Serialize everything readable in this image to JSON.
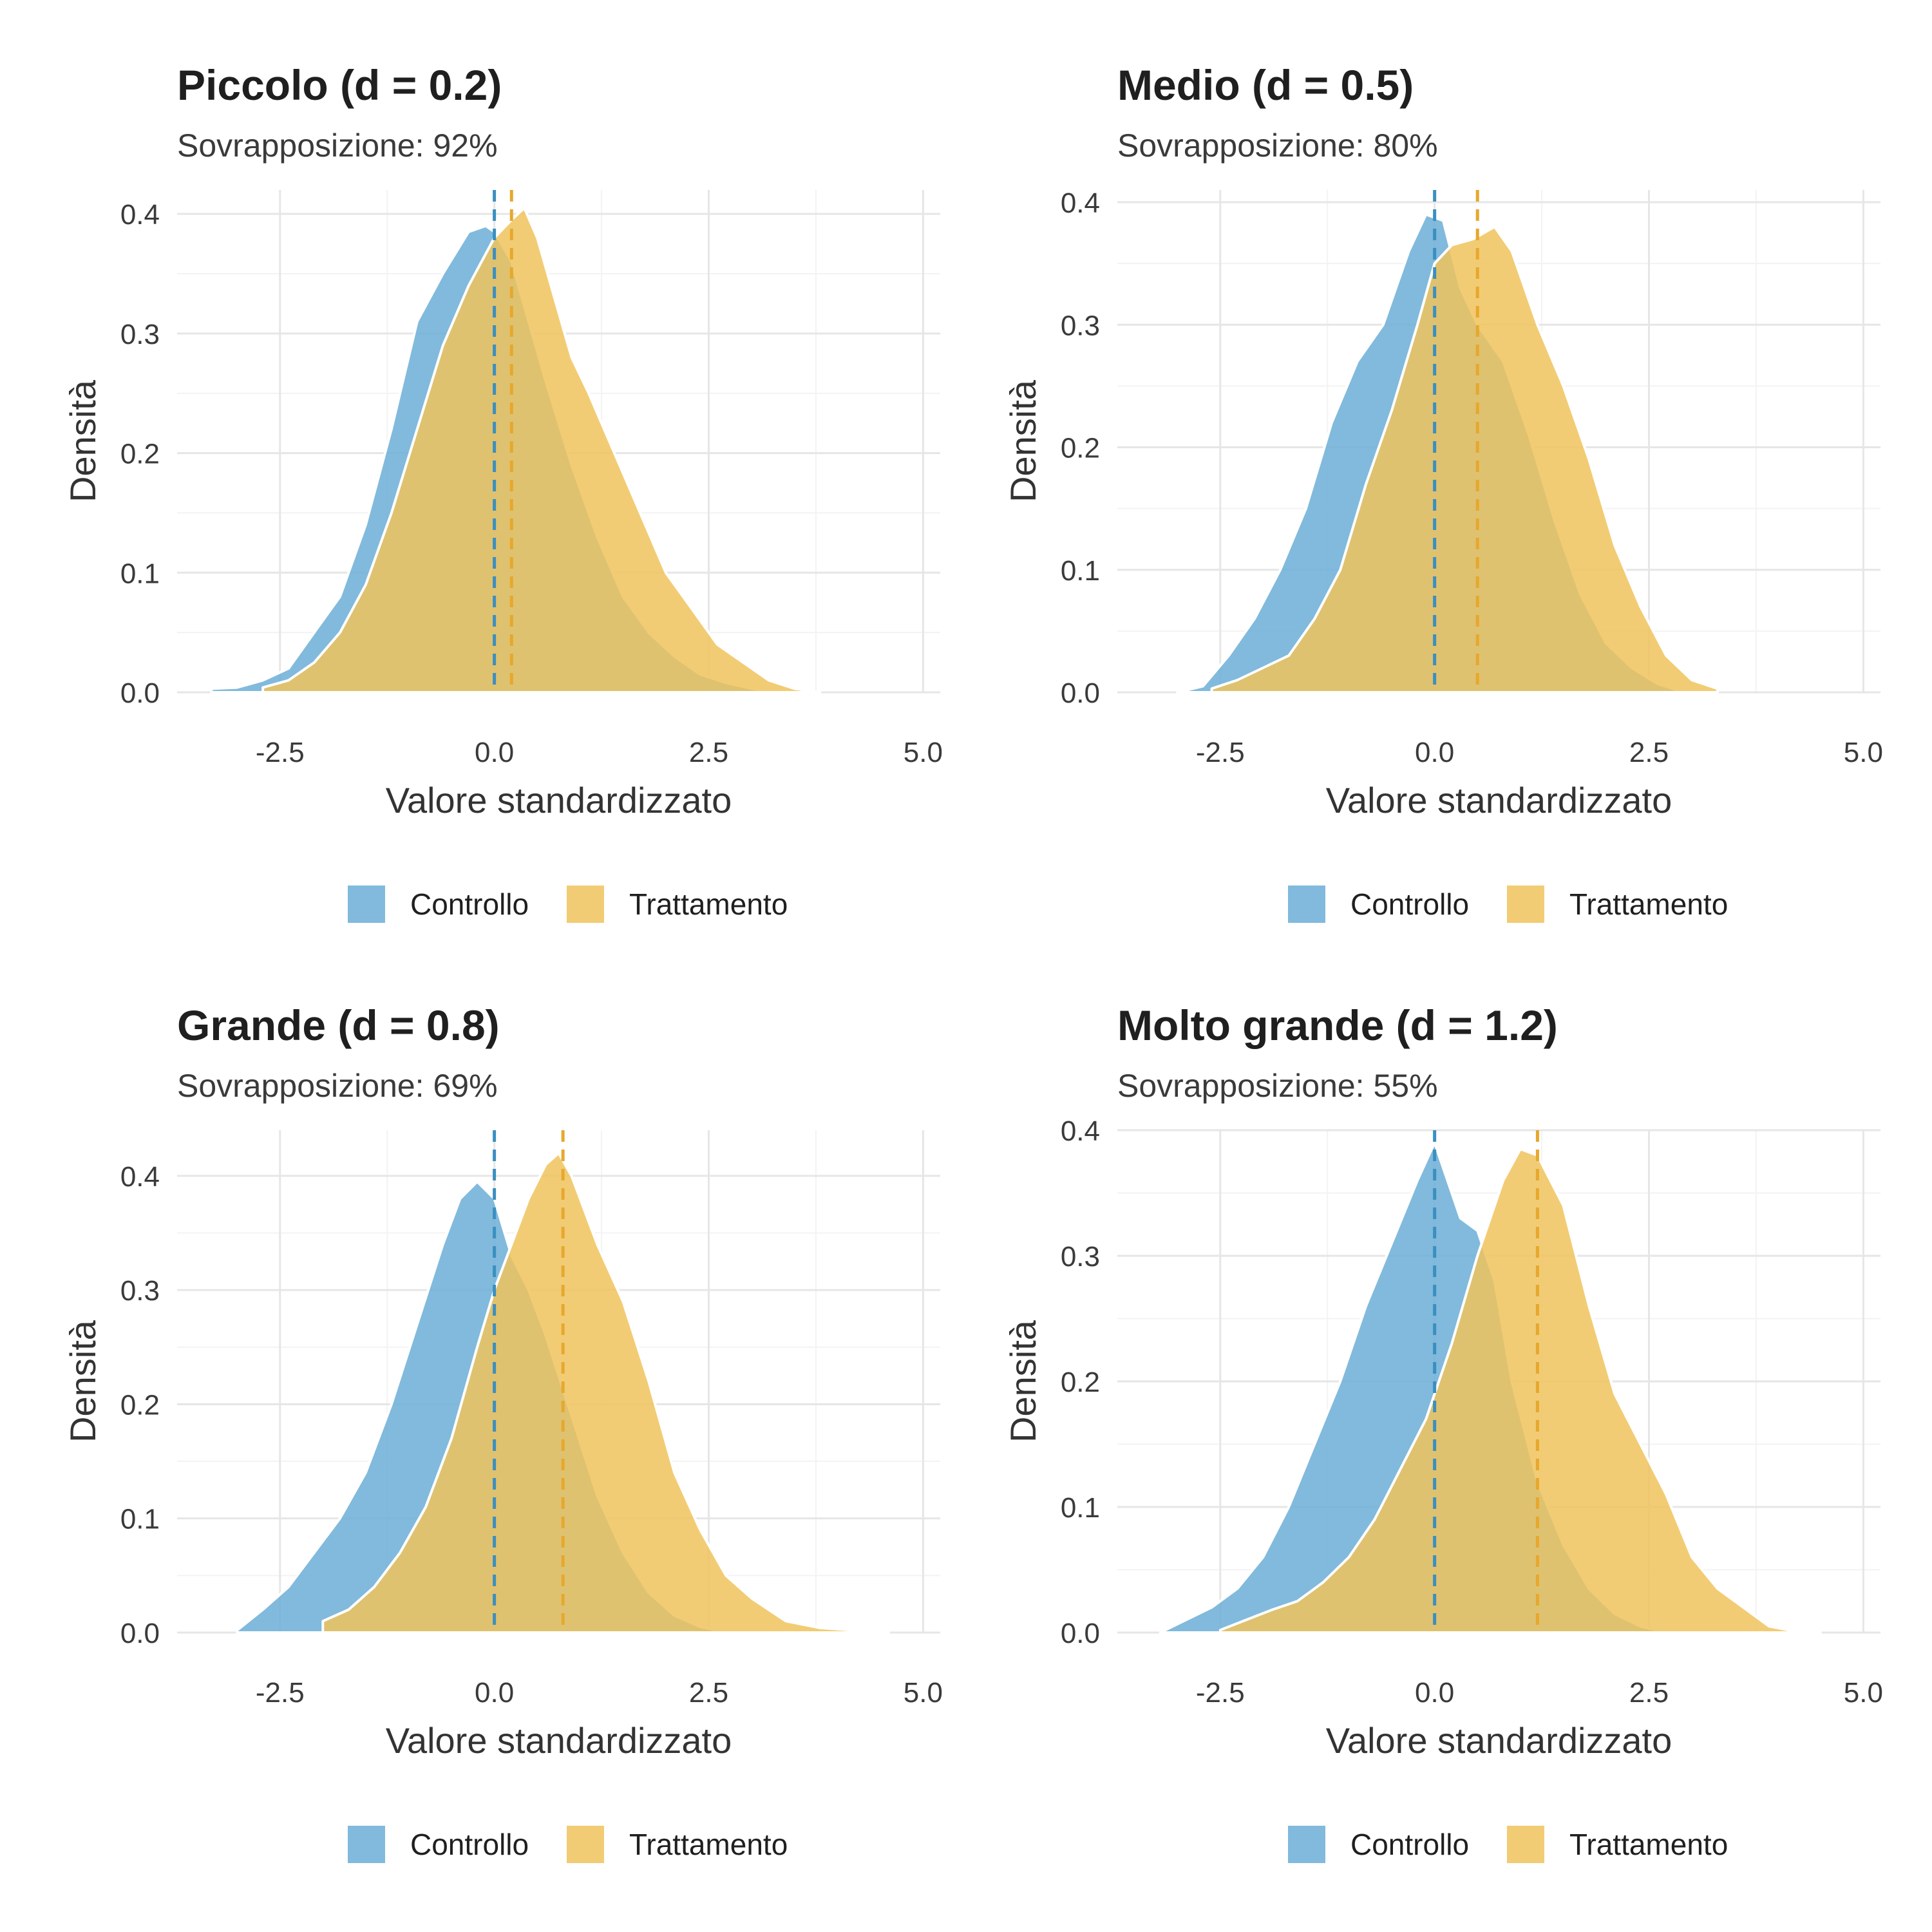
{
  "colors": {
    "controllo": "#6BAED6",
    "trattamento": "#F0C35C",
    "controllo_line": "#3A8FC0",
    "trattamento_line": "#E6A82E",
    "grid_major": "#E6E6E6",
    "grid_minor": "#F3F3F3"
  },
  "chart_data": [
    {
      "type": "area",
      "title": "Piccolo (d = 0.2)",
      "subtitle": "Sovrapposizione: 92%",
      "xlabel": "Valore standardizzato",
      "ylabel": "Densità",
      "xlim": [
        -3.7,
        5.2
      ],
      "ylim": [
        0,
        0.42
      ],
      "xticks": [
        -2.5,
        0.0,
        2.5,
        5.0
      ],
      "xtick_labels": [
        "-2.5",
        "0.0",
        "2.5",
        "5.0"
      ],
      "yticks": [
        0.0,
        0.1,
        0.2,
        0.3,
        0.4
      ],
      "ytick_labels": [
        "0.0",
        "0.1",
        "0.2",
        "0.3",
        "0.4"
      ],
      "legend": [
        "Controllo",
        "Trattamento"
      ],
      "legend_position": "bottom",
      "mean_lines": [
        0.0,
        0.2
      ],
      "series": [
        {
          "name": "Controllo",
          "x": [
            -3.3,
            -3.0,
            -2.7,
            -2.4,
            -2.1,
            -1.8,
            -1.5,
            -1.2,
            -0.9,
            -0.6,
            -0.3,
            -0.1,
            0.0,
            0.2,
            0.4,
            0.6,
            0.9,
            1.2,
            1.5,
            1.8,
            2.1,
            2.4,
            2.7,
            3.0,
            3.2
          ],
          "y": [
            0.003,
            0.004,
            0.01,
            0.02,
            0.05,
            0.08,
            0.14,
            0.22,
            0.31,
            0.35,
            0.385,
            0.39,
            0.385,
            0.36,
            0.31,
            0.26,
            0.19,
            0.13,
            0.08,
            0.05,
            0.03,
            0.015,
            0.008,
            0.003,
            0.0
          ]
        },
        {
          "name": "Trattamento",
          "x": [
            -2.7,
            -2.4,
            -2.1,
            -1.8,
            -1.5,
            -1.2,
            -0.9,
            -0.6,
            -0.3,
            0.0,
            0.2,
            0.35,
            0.5,
            0.7,
            0.9,
            1.1,
            1.4,
            1.7,
            2.0,
            2.3,
            2.6,
            2.9,
            3.2,
            3.5,
            3.8
          ],
          "y": [
            0.004,
            0.01,
            0.025,
            0.05,
            0.09,
            0.15,
            0.22,
            0.29,
            0.34,
            0.38,
            0.395,
            0.405,
            0.38,
            0.33,
            0.28,
            0.25,
            0.2,
            0.15,
            0.1,
            0.07,
            0.04,
            0.025,
            0.01,
            0.003,
            0.0
          ]
        }
      ]
    },
    {
      "type": "area",
      "title": "Medio (d = 0.5)",
      "subtitle": "Sovrapposizione: 80%",
      "xlabel": "Valore standardizzato",
      "ylabel": "Densità",
      "xlim": [
        -3.7,
        5.2
      ],
      "ylim": [
        0,
        0.41
      ],
      "xticks": [
        -2.5,
        0.0,
        2.5,
        5.0
      ],
      "xtick_labels": [
        "-2.5",
        "0.0",
        "2.5",
        "5.0"
      ],
      "yticks": [
        0.0,
        0.1,
        0.2,
        0.3,
        0.4
      ],
      "ytick_labels": [
        "0.0",
        "0.1",
        "0.2",
        "0.3",
        "0.4"
      ],
      "legend": [
        "Controllo",
        "Trattamento"
      ],
      "legend_position": "bottom",
      "mean_lines": [
        0.0,
        0.5
      ],
      "series": [
        {
          "name": "Controllo",
          "x": [
            -3.0,
            -2.7,
            -2.4,
            -2.1,
            -1.8,
            -1.5,
            -1.2,
            -0.9,
            -0.6,
            -0.3,
            -0.1,
            0.1,
            0.3,
            0.5,
            0.8,
            1.1,
            1.4,
            1.7,
            2.0,
            2.3,
            2.6,
            2.9
          ],
          "y": [
            0.0,
            0.005,
            0.03,
            0.06,
            0.1,
            0.15,
            0.22,
            0.27,
            0.3,
            0.36,
            0.39,
            0.385,
            0.33,
            0.3,
            0.27,
            0.21,
            0.14,
            0.08,
            0.04,
            0.02,
            0.007,
            0.0
          ]
        },
        {
          "name": "Trattamento",
          "x": [
            -2.6,
            -2.3,
            -2.0,
            -1.7,
            -1.4,
            -1.1,
            -0.8,
            -0.5,
            -0.2,
            0.0,
            0.2,
            0.45,
            0.7,
            0.9,
            1.2,
            1.5,
            1.8,
            2.1,
            2.4,
            2.7,
            3.0,
            3.3
          ],
          "y": [
            0.003,
            0.01,
            0.02,
            0.03,
            0.06,
            0.1,
            0.17,
            0.23,
            0.3,
            0.35,
            0.365,
            0.37,
            0.38,
            0.36,
            0.3,
            0.25,
            0.19,
            0.12,
            0.07,
            0.03,
            0.01,
            0.003
          ]
        }
      ]
    },
    {
      "type": "area",
      "title": "Grande (d = 0.8)",
      "subtitle": "Sovrapposizione: 69%",
      "xlabel": "Valore standardizzato",
      "ylabel": "Densità",
      "xlim": [
        -3.7,
        5.2
      ],
      "ylim": [
        0,
        0.44
      ],
      "xticks": [
        -2.5,
        0.0,
        2.5,
        5.0
      ],
      "xtick_labels": [
        "-2.5",
        "0.0",
        "2.5",
        "5.0"
      ],
      "yticks": [
        0.0,
        0.1,
        0.2,
        0.3,
        0.4
      ],
      "ytick_labels": [
        "0.0",
        "0.1",
        "0.2",
        "0.3",
        "0.4"
      ],
      "legend": [
        "Controllo",
        "Trattamento"
      ],
      "legend_position": "bottom",
      "mean_lines": [
        0.0,
        0.8
      ],
      "series": [
        {
          "name": "Controllo",
          "x": [
            -3.0,
            -2.7,
            -2.4,
            -2.1,
            -1.8,
            -1.5,
            -1.2,
            -0.9,
            -0.6,
            -0.4,
            -0.2,
            0.0,
            0.2,
            0.4,
            0.6,
            0.9,
            1.2,
            1.5,
            1.8,
            2.1,
            2.4,
            2.7
          ],
          "y": [
            0.002,
            0.02,
            0.04,
            0.07,
            0.1,
            0.14,
            0.2,
            0.27,
            0.34,
            0.38,
            0.395,
            0.38,
            0.33,
            0.3,
            0.26,
            0.19,
            0.12,
            0.07,
            0.035,
            0.015,
            0.005,
            0.0
          ]
        },
        {
          "name": "Trattamento",
          "x": [
            -2.0,
            -1.7,
            -1.4,
            -1.1,
            -0.8,
            -0.5,
            -0.2,
            0.0,
            0.2,
            0.4,
            0.6,
            0.75,
            0.9,
            1.2,
            1.5,
            1.8,
            2.1,
            2.4,
            2.7,
            3.0,
            3.4,
            3.8,
            4.2,
            4.6
          ],
          "y": [
            0.01,
            0.02,
            0.04,
            0.07,
            0.11,
            0.17,
            0.25,
            0.3,
            0.34,
            0.38,
            0.41,
            0.42,
            0.4,
            0.34,
            0.29,
            0.22,
            0.14,
            0.09,
            0.05,
            0.03,
            0.01,
            0.004,
            0.002,
            0.0
          ]
        }
      ]
    },
    {
      "type": "area",
      "title": "Molto grande (d = 1.2)",
      "subtitle": "Sovrapposizione: 55%",
      "xlabel": "Valore standardizzato",
      "ylabel": "Densità",
      "xlim": [
        -3.7,
        5.2
      ],
      "ylim": [
        0,
        0.4
      ],
      "xticks": [
        -2.5,
        0.0,
        2.5,
        5.0
      ],
      "xtick_labels": [
        "-2.5",
        "0.0",
        "2.5",
        "5.0"
      ],
      "yticks": [
        0.0,
        0.1,
        0.2,
        0.3,
        0.4
      ],
      "ytick_labels": [
        "0.0",
        "0.1",
        "0.2",
        "0.3",
        "0.4"
      ],
      "legend": [
        "Controllo",
        "Trattamento"
      ],
      "legend_position": "bottom",
      "mean_lines": [
        0.0,
        1.2
      ],
      "series": [
        {
          "name": "Controllo",
          "x": [
            -3.2,
            -2.9,
            -2.6,
            -2.3,
            -2.0,
            -1.7,
            -1.4,
            -1.1,
            -0.8,
            -0.5,
            -0.2,
            0.0,
            0.15,
            0.3,
            0.5,
            0.7,
            0.9,
            1.2,
            1.5,
            1.8,
            2.1,
            2.4,
            2.7
          ],
          "y": [
            0.0,
            0.01,
            0.02,
            0.035,
            0.06,
            0.1,
            0.15,
            0.2,
            0.26,
            0.31,
            0.36,
            0.39,
            0.36,
            0.33,
            0.32,
            0.28,
            0.2,
            0.12,
            0.07,
            0.035,
            0.015,
            0.005,
            0.0
          ]
        },
        {
          "name": "Trattamento",
          "x": [
            -2.5,
            -2.2,
            -1.9,
            -1.6,
            -1.3,
            -1.0,
            -0.7,
            -0.4,
            -0.1,
            0.2,
            0.5,
            0.8,
            1.0,
            1.2,
            1.5,
            1.8,
            2.1,
            2.4,
            2.7,
            3.0,
            3.3,
            3.6,
            3.9,
            4.2,
            4.5
          ],
          "y": [
            0.002,
            0.01,
            0.018,
            0.025,
            0.04,
            0.06,
            0.09,
            0.13,
            0.17,
            0.23,
            0.3,
            0.36,
            0.385,
            0.38,
            0.34,
            0.26,
            0.19,
            0.15,
            0.11,
            0.06,
            0.035,
            0.02,
            0.005,
            0.001,
            0.0
          ]
        }
      ]
    }
  ]
}
